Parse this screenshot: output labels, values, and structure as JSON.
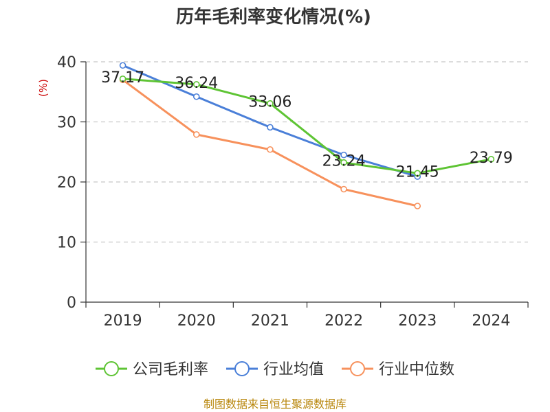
{
  "chart_data": {
    "type": "line",
    "title": "历年毛利率变化情况(%)",
    "xlabel": "",
    "ylabel": "(%)",
    "ylim": [
      0,
      40
    ],
    "yticks": [
      0,
      10,
      20,
      30,
      40
    ],
    "grid": true,
    "categories": [
      "2019",
      "2020",
      "2021",
      "2022",
      "2023",
      "2024"
    ],
    "series": [
      {
        "name": "公司毛利率",
        "color": "#5ec434",
        "values": [
          37.17,
          36.24,
          33.06,
          23.24,
          21.45,
          23.79
        ],
        "labels": [
          "37.17",
          "36.24",
          "33.06",
          "23.24",
          "21.45",
          "23.79"
        ]
      },
      {
        "name": "行业均值",
        "color": "#4a7fd8",
        "values": [
          39.4,
          34.2,
          29.1,
          24.5,
          20.9,
          null
        ]
      },
      {
        "name": "行业中位数",
        "color": "#f7915c",
        "values": [
          37.0,
          27.9,
          25.4,
          18.8,
          16.0,
          null
        ]
      }
    ],
    "legend_position": "bottom"
  },
  "source": "制图数据来自恒生聚源数据库"
}
